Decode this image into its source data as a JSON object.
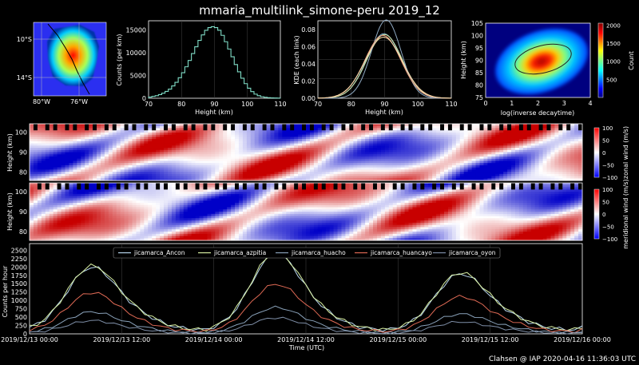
{
  "title": "mmaria_multilink_simone-peru 2019_12",
  "footer": "Clahsen @ IAP 2020-04-16 11:36:03 UTC",
  "chart_data": [
    {
      "id": "map",
      "type": "heatmap",
      "xticks": [
        "80°W",
        "76°W"
      ],
      "yticks": [
        "10°S",
        "14°S"
      ]
    },
    {
      "id": "height_hist",
      "type": "bar",
      "xlabel": "Height (km)",
      "ylabel": "Counts (per km)",
      "xlim": [
        70,
        110
      ],
      "ylim": [
        0,
        17000
      ],
      "xticks": [
        "70",
        "80",
        "90",
        "100",
        "110"
      ],
      "yticks": [
        "0",
        "5000",
        "10000",
        "15000"
      ],
      "x": [
        70,
        71,
        72,
        73,
        74,
        75,
        76,
        77,
        78,
        79,
        80,
        81,
        82,
        83,
        84,
        85,
        86,
        87,
        88,
        89,
        90,
        91,
        92,
        93,
        94,
        95,
        96,
        97,
        98,
        99,
        100,
        101,
        102,
        103,
        104,
        105,
        106,
        107,
        108,
        109
      ],
      "values": [
        250,
        400,
        550,
        800,
        1100,
        1500,
        2000,
        2700,
        3500,
        4500,
        5600,
        6900,
        8300,
        9800,
        11300,
        12700,
        13900,
        14900,
        15500,
        15700,
        15500,
        14900,
        13800,
        12400,
        10800,
        9100,
        7400,
        5800,
        4400,
        3200,
        2200,
        1450,
        900,
        550,
        330,
        200,
        120,
        80,
        50,
        30
      ]
    },
    {
      "id": "kde",
      "type": "line",
      "xlabel": "Height (km)",
      "ylabel": "KDE (each link)",
      "xlim": [
        70,
        110
      ],
      "ylim": [
        0,
        0.09
      ],
      "xticks": [
        "70",
        "80",
        "90",
        "100",
        "110"
      ],
      "yticks": [
        "0.00",
        "0.02",
        "0.04",
        "0.06",
        "0.08"
      ],
      "series": [
        {
          "color": "#7fb3d5",
          "peak": 89.8,
          "sigma": 5.2,
          "amp": 0.075
        },
        {
          "color": "#cfe8a9",
          "peak": 90.0,
          "sigma": 5.3,
          "amp": 0.074
        },
        {
          "color": "#8fa9c2",
          "peak": 90.5,
          "sigma": 4.4,
          "amp": 0.091
        },
        {
          "color": "#f4a582",
          "peak": 89.5,
          "sigma": 5.4,
          "amp": 0.073
        },
        {
          "color": "#fde0b0",
          "peak": 89.7,
          "sigma": 5.6,
          "amp": 0.071
        }
      ]
    },
    {
      "id": "decay_hist2d",
      "type": "heatmap",
      "xlabel": "log(inverse decaytime)",
      "ylabel": "Height (km)",
      "xlim": [
        0,
        4
      ],
      "ylim": [
        75,
        105
      ],
      "xticks": [
        "0",
        "1",
        "2",
        "3",
        "4"
      ],
      "yticks": [
        "75",
        "80",
        "85",
        "90",
        "95",
        "100",
        "105"
      ],
      "center": [
        2.2,
        90
      ],
      "colorbar_label": "Count",
      "colorbar_ticks": [
        "500",
        "1000",
        "1500",
        "2000"
      ],
      "colorbar_range": [
        0,
        2050
      ]
    },
    {
      "id": "zonal",
      "type": "heatmap",
      "ylabel": "Height (km)",
      "yticks": [
        "80",
        "90",
        "100"
      ],
      "ylim": [
        76,
        106
      ],
      "colorbar_label": "zonal wind (m/s)",
      "colorbar_ticks": [
        "100",
        "50",
        "0",
        "−50",
        "−100"
      ]
    },
    {
      "id": "meridional",
      "type": "heatmap",
      "ylabel": "Height (km)",
      "yticks": [
        "80",
        "90",
        "100"
      ],
      "ylim": [
        76,
        106
      ],
      "colorbar_label": "meridional wind (m/s)",
      "colorbar_ticks": [
        "100",
        "50",
        "0",
        "−50",
        "−100"
      ]
    },
    {
      "id": "counts",
      "type": "line",
      "xlabel": "Time (UTC)",
      "ylabel": "Counts per hour",
      "xlim": [
        0,
        72
      ],
      "ylim": [
        0,
        2700
      ],
      "xticks": [
        "2019/12/13 00:00",
        "2019/12/13 12:00",
        "2019/12/14 00:00",
        "2019/12/14 12:00",
        "2019/12/15 00:00",
        "2019/12/15 12:00",
        "2019/12/16 00:00"
      ],
      "yticks": [
        "0",
        "250",
        "500",
        "750",
        "1000",
        "1250",
        "1500",
        "1750",
        "2000",
        "2250",
        "2500"
      ],
      "series": [
        {
          "name": "jicamarca_Ancon",
          "color": "#b9d6ee",
          "scale": 1.0,
          "noise": 60
        },
        {
          "name": "jicamarca_azpitia",
          "color": "#d9f0a3",
          "scale": 1.02,
          "noise": 55
        },
        {
          "name": "jicamarca_huacho",
          "color": "#8aa2ba",
          "scale": 0.33,
          "noise": 40
        },
        {
          "name": "jicamarca_huancayo",
          "color": "#e06a55",
          "scale": 0.62,
          "noise": 45
        },
        {
          "name": "jicamarca_oyon",
          "color": "#7f8fa8",
          "scale": 0.2,
          "noise": 35
        }
      ],
      "daily_peaks": [
        1950,
        2350,
        1750
      ]
    }
  ]
}
